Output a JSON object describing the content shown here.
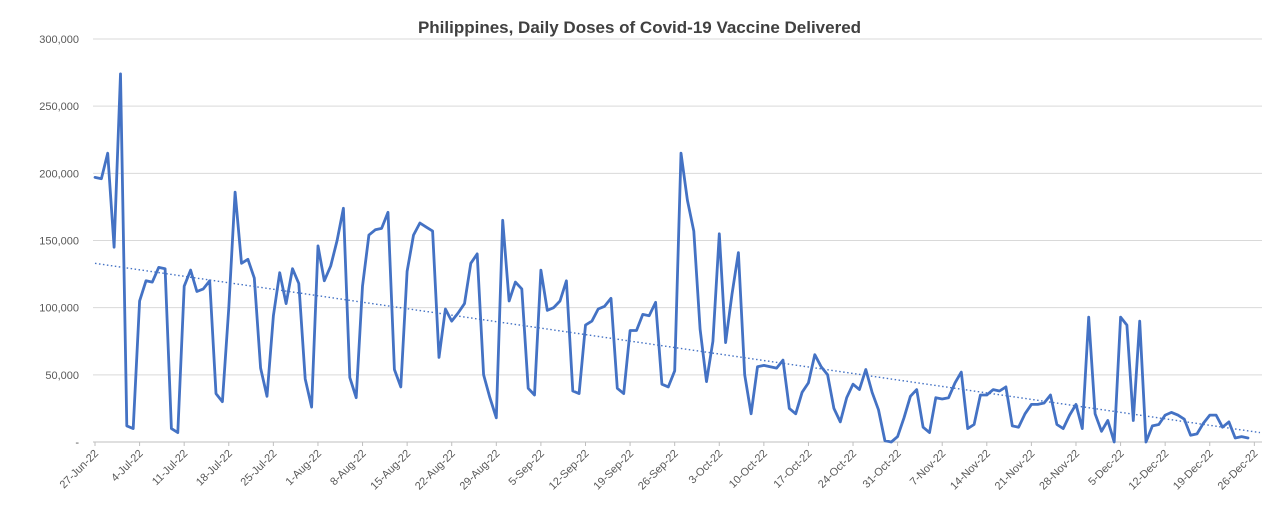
{
  "chart_data": {
    "type": "line",
    "title": "Philippines, Daily Doses of Covid-19 Vaccine Delivered",
    "xlabel": "",
    "ylabel": "",
    "ylim": [
      0,
      300000
    ],
    "y_ticks": [
      0,
      50000,
      100000,
      150000,
      200000,
      250000,
      300000
    ],
    "y_tick_labels": [
      "-",
      "50,000",
      "100,000",
      "150,000",
      "200,000",
      "250,000",
      "300,000"
    ],
    "x_tick_labels": [
      "27-Jun-22",
      "4-Jul-22",
      "11-Jul-22",
      "18-Jul-22",
      "25-Jul-22",
      "1-Aug-22",
      "8-Aug-22",
      "15-Aug-22",
      "22-Aug-22",
      "29-Aug-22",
      "5-Sep-22",
      "12-Sep-22",
      "19-Sep-22",
      "26-Sep-22",
      "3-Oct-22",
      "10-Oct-22",
      "17-Oct-22",
      "24-Oct-22",
      "31-Oct-22",
      "7-Nov-22",
      "14-Nov-22",
      "21-Nov-22",
      "28-Nov-22",
      "5-Dec-22",
      "12-Dec-22",
      "19-Dec-22",
      "26-Dec-22"
    ],
    "grid": true,
    "colors": {
      "series": "#4472c4",
      "trend": "#4472c4",
      "grid": "#d9d9d9",
      "axis": "#bfbfbf",
      "text": "#595959",
      "title": "#404040"
    },
    "series": [
      {
        "x_start": "27-Jun-22",
        "x_end": "29-Dec-22",
        "values": [
          197000,
          196000,
          215000,
          145000,
          274000,
          12000,
          10000,
          105000,
          120000,
          119000,
          130000,
          129000,
          10000,
          7000,
          116000,
          128000,
          112000,
          114000,
          120000,
          36000,
          30000,
          100000,
          186000,
          133000,
          136000,
          122000,
          55000,
          34000,
          94000,
          126000,
          103000,
          129000,
          118000,
          47000,
          26000,
          146000,
          120000,
          131000,
          150000,
          174000,
          48000,
          33000,
          116000,
          154000,
          158000,
          159000,
          171000,
          54000,
          41000,
          127000,
          154000,
          163000,
          160000,
          157000,
          63000,
          99000,
          90000,
          96000,
          103000,
          133000,
          140000,
          50000,
          33000,
          18000,
          165000,
          105000,
          119000,
          114000,
          40000,
          35000,
          128000,
          98000,
          100000,
          105000,
          120000,
          38000,
          36000,
          87000,
          90000,
          99000,
          101000,
          107000,
          40000,
          36000,
          83000,
          83000,
          95000,
          94000,
          104000,
          43000,
          41000,
          53000,
          215000,
          180000,
          157000,
          84000,
          45000,
          75000,
          155000,
          74000,
          110000,
          141000,
          50000,
          21000,
          56000,
          57000,
          56000,
          55000,
          61000,
          25000,
          21000,
          37000,
          44000,
          65000,
          56000,
          50000,
          25000,
          15000,
          33000,
          43000,
          39000,
          54000,
          37000,
          24000,
          1000,
          0,
          4000,
          18000,
          34000,
          39000,
          11000,
          7000,
          33000,
          32000,
          33000,
          44000,
          52000,
          10000,
          13000,
          35000,
          35000,
          39000,
          38000,
          41000,
          12000,
          11000,
          21000,
          28000,
          28000,
          29000,
          35000,
          13000,
          10000,
          20000,
          28000,
          10000,
          93000,
          21000,
          8000,
          16000,
          0,
          93000,
          87000,
          16000,
          90000,
          0,
          12000,
          13000,
          20000,
          22000,
          20000,
          17000,
          5000,
          6000,
          14000,
          20000,
          20000,
          11000,
          15000,
          3000,
          4000,
          3000
        ]
      }
    ],
    "trendline": {
      "type": "linear",
      "style": "dotted",
      "start_value": 133000,
      "end_value": 7000
    }
  }
}
